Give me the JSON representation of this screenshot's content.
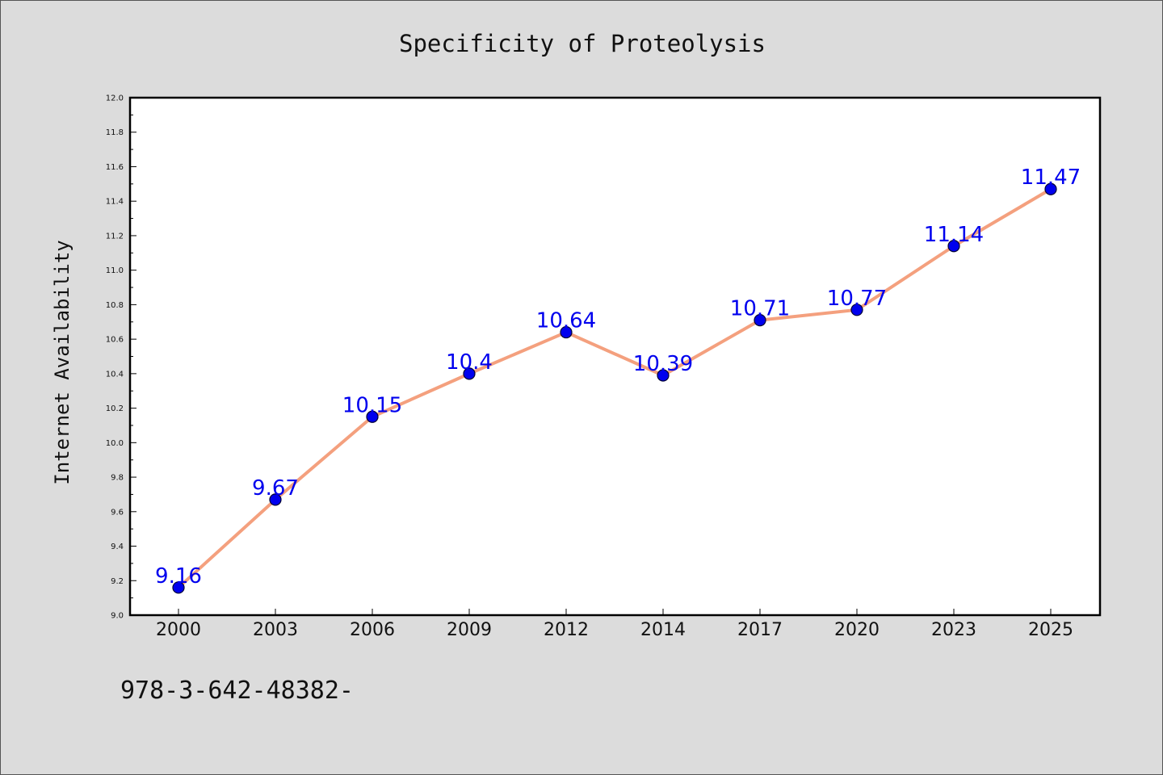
{
  "chart_data": {
    "type": "line",
    "title": "Specificity of Proteolysis",
    "xlabel": "",
    "ylabel": "Internet Availability",
    "categories": [
      "2000",
      "2003",
      "2006",
      "2009",
      "2012",
      "2014",
      "2017",
      "2020",
      "2023",
      "2025"
    ],
    "series": [
      {
        "values": [
          9.16,
          9.67,
          10.15,
          10.4,
          10.64,
          10.39,
          10.71,
          10.77,
          11.14,
          11.47
        ]
      }
    ],
    "data_labels": [
      "9.16",
      "9.67",
      "10.15",
      "10.4",
      "10.64",
      "10.39",
      "10.71",
      "10.77",
      "11.14",
      "11.47"
    ],
    "ylim": [
      9.0,
      12.0
    ],
    "yticks": [
      "9.0",
      "9.2",
      "9.4",
      "9.6",
      "9.8",
      "10.0",
      "10.2",
      "10.4",
      "10.6",
      "10.8",
      "11.0",
      "11.2",
      "11.4",
      "11.6",
      "11.8",
      "12.0"
    ],
    "grid": false,
    "legend": "none",
    "colors": {
      "line": "#f4a07e",
      "marker": "#0000ee",
      "marker_edge": "#000033",
      "data_label": "#0000ee",
      "background": "#dcdcdc",
      "plot_background": "#ffffff"
    }
  },
  "caption": "978-3-642-48382-"
}
